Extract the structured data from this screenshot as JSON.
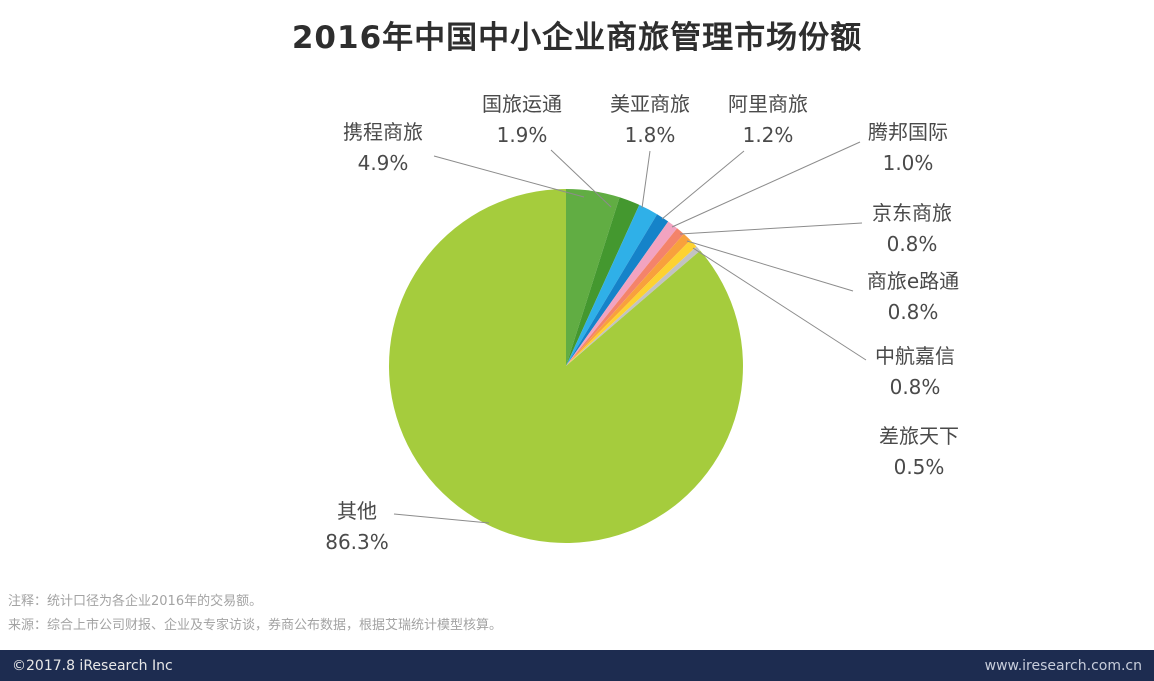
{
  "chart_data": {
    "type": "pie",
    "title": "2016年中国中小企业商旅管理市场份额",
    "unit": "%",
    "start_angle_deg": 0,
    "direction": "clockwise-from-top",
    "labels_position": "outside-with-leader-lines",
    "slices": [
      {
        "id": "ctrip",
        "name": "携程商旅",
        "value": 4.9,
        "share": "4.9%",
        "color": "#61ad43"
      },
      {
        "id": "guolv-yuntong",
        "name": "国旅运通",
        "value": 1.9,
        "share": "1.9%",
        "color": "#44982f"
      },
      {
        "id": "meiya",
        "name": "美亚商旅",
        "value": 1.8,
        "share": "1.8%",
        "color": "#2fb0e8"
      },
      {
        "id": "ali",
        "name": "阿里商旅",
        "value": 1.2,
        "share": "1.2%",
        "color": "#1583c9"
      },
      {
        "id": "tengbang",
        "name": "腾邦国际",
        "value": 1.0,
        "share": "1.0%",
        "color": "#f2a3c0"
      },
      {
        "id": "jd",
        "name": "京东商旅",
        "value": 0.8,
        "share": "0.8%",
        "color": "#f4836a"
      },
      {
        "id": "elutong",
        "name": "商旅e路通",
        "value": 0.8,
        "share": "0.8%",
        "color": "#f8a13c"
      },
      {
        "id": "zhonghang-jiaxin",
        "name": "中航嘉信",
        "value": 0.8,
        "share": "0.8%",
        "color": "#fdd231"
      },
      {
        "id": "chailv-tianxia",
        "name": "差旅天下",
        "value": 0.5,
        "share": "0.5%",
        "color": "#c2c2c2"
      },
      {
        "id": "others",
        "name": "其他",
        "value": 86.3,
        "share": "86.3%",
        "color": "#a5cc3d"
      }
    ]
  },
  "notes": {
    "line1": "注释：统计口径为各企业2016年的交易额。",
    "line2": "来源：综合上市公司财报、企业及专家访谈，券商公布数据，根据艾瑞统计模型核算。"
  },
  "footer": {
    "copyright": "©2017.8 iResearch Inc",
    "website": "www.iresearch.com.cn",
    "bar_color": "#1d2c50"
  }
}
